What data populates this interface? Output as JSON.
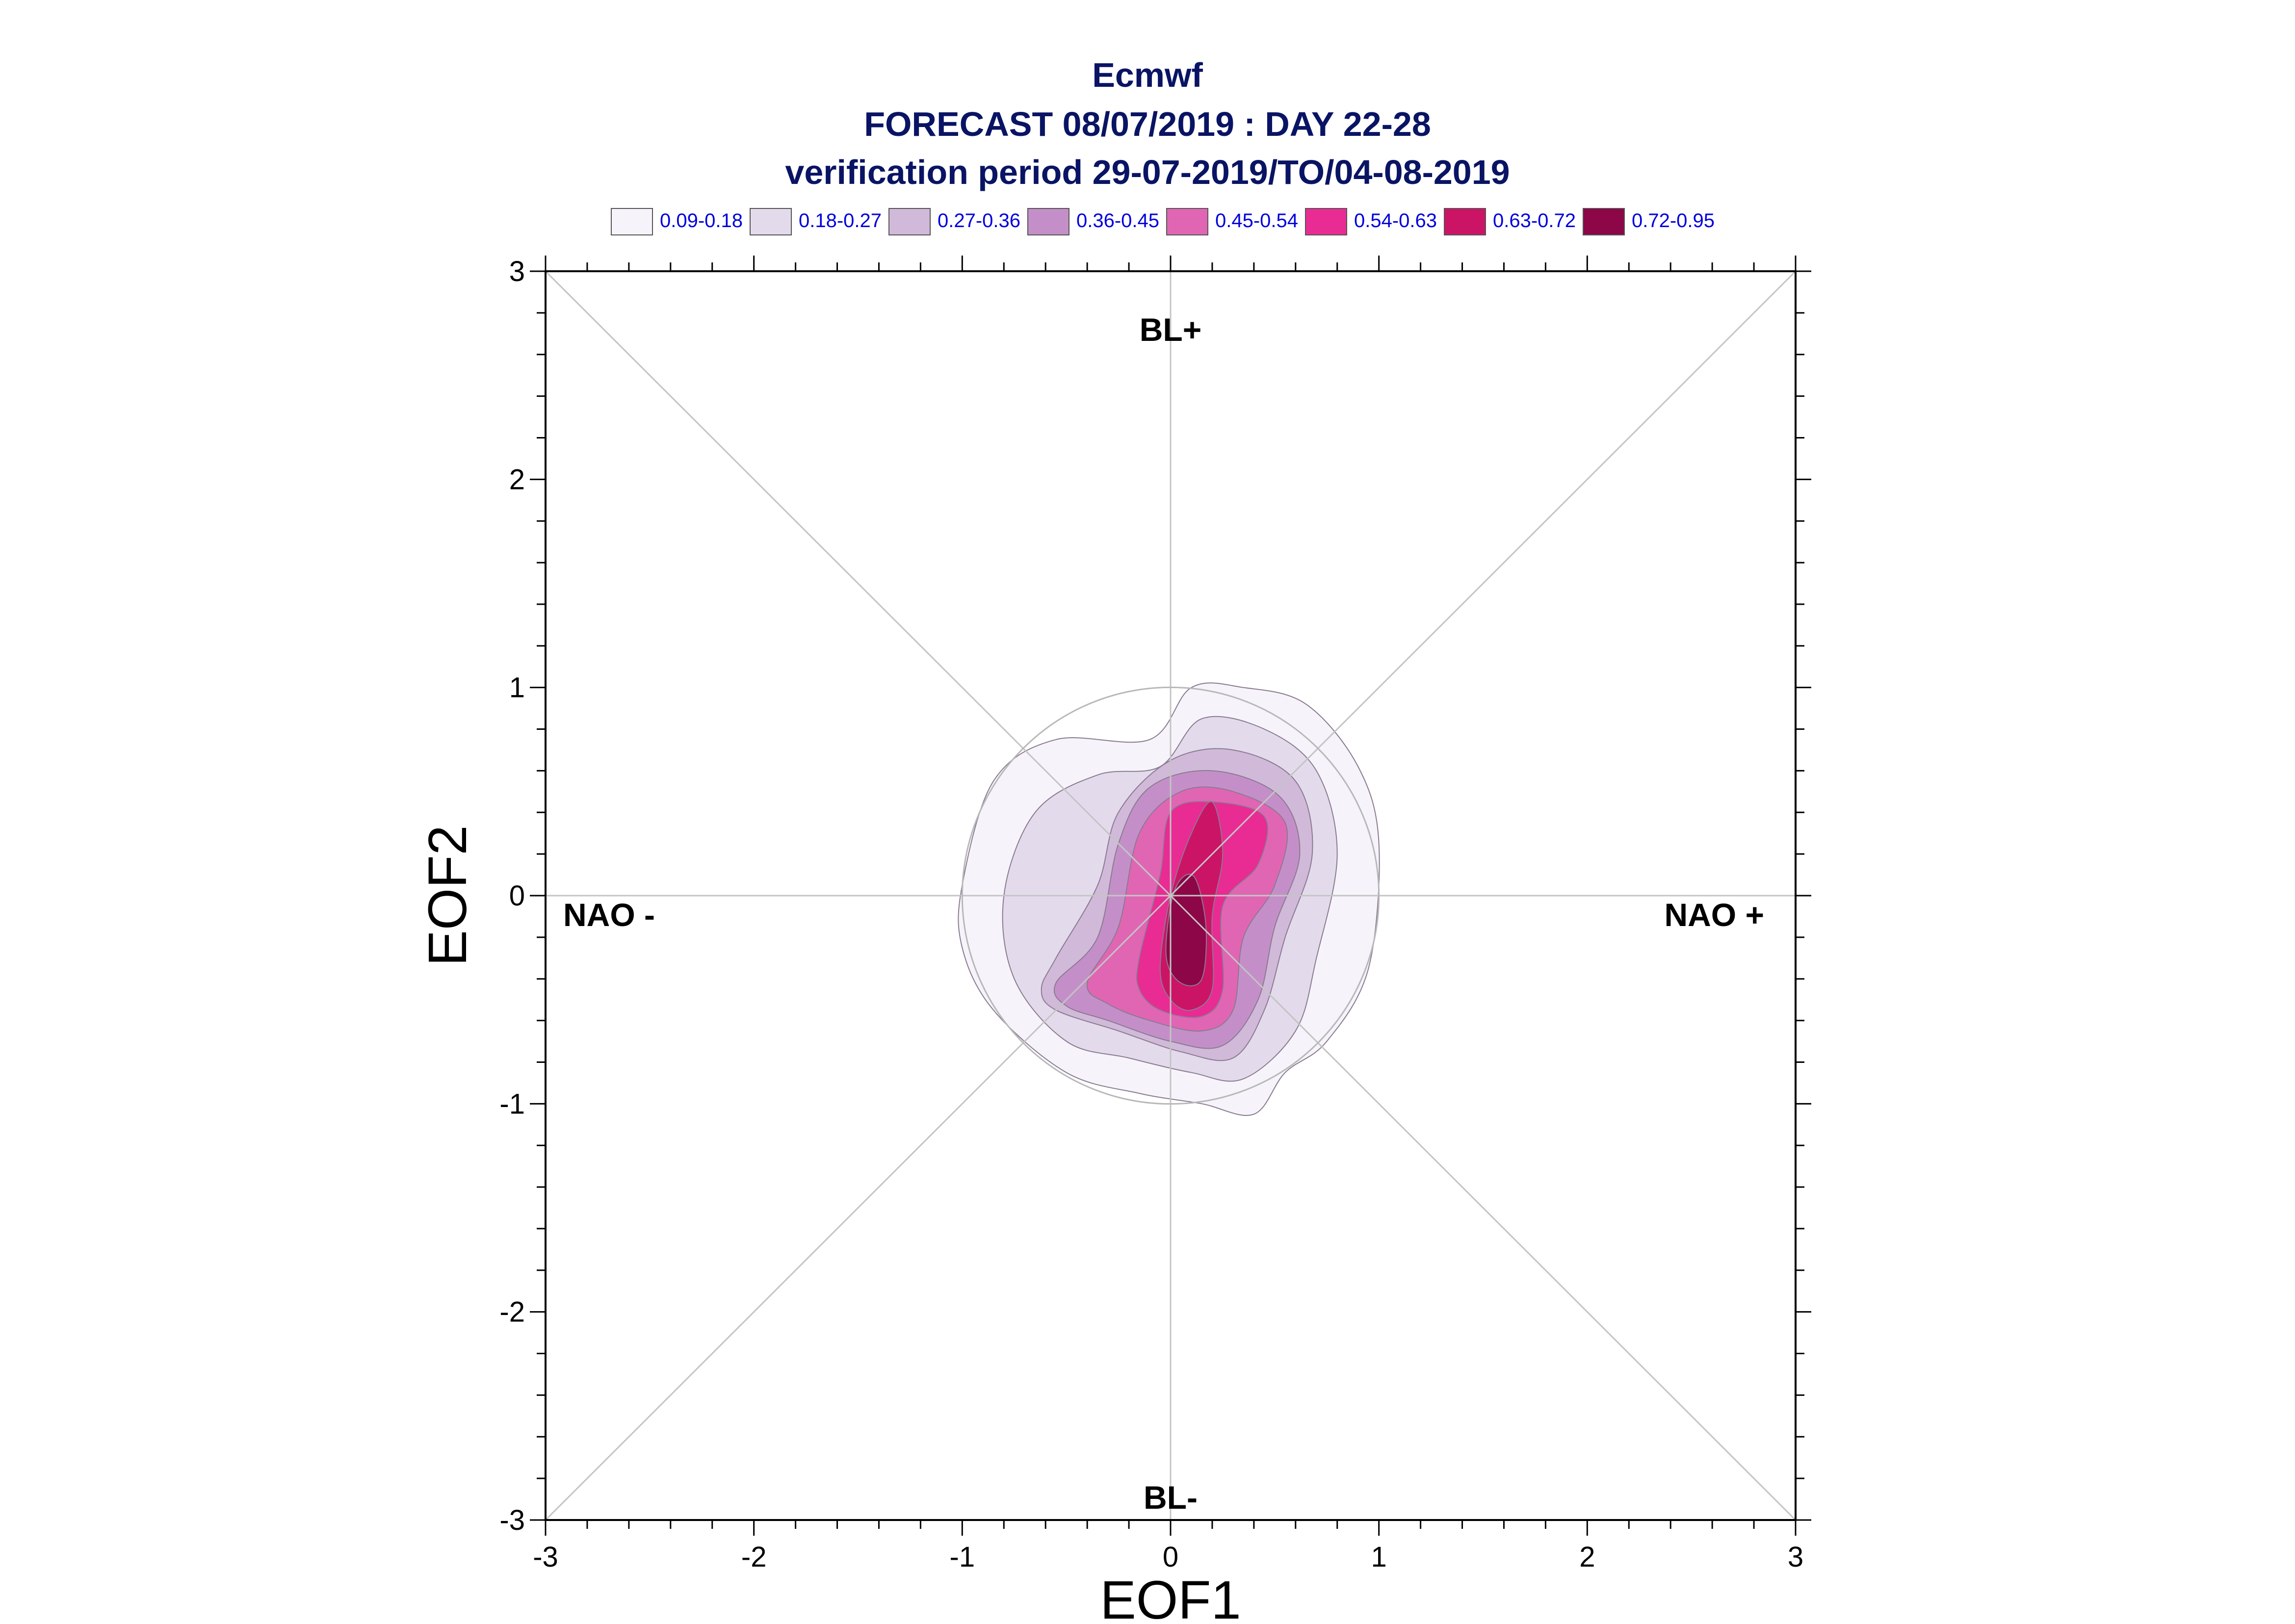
{
  "chart_data": {
    "type": "contour",
    "title": "Ecmwf",
    "subtitle": "FORECAST 08/07/2019 : DAY 22-28",
    "period": "verification period 29-07-2019/TO/04-08-2019",
    "xlabel": "EOF1",
    "ylabel": "EOF2",
    "xlim": [
      -3,
      3
    ],
    "ylim": [
      -3,
      3
    ],
    "x_ticks": [
      "-3",
      "-2",
      "-1",
      "0",
      "1",
      "2",
      "3"
    ],
    "y_ticks": [
      "-3",
      "-2",
      "-1",
      "0",
      "1",
      "2",
      "3"
    ],
    "regime_labels": {
      "top": "BL+",
      "bottom": "BL-",
      "left": "NAO -",
      "right": "NAO +"
    },
    "reference_circle_radius": 1.0,
    "legend": [
      {
        "label": "0.09-0.18",
        "color": "#f6f4fa"
      },
      {
        "label": "0.18-0.27",
        "color": "#e3dbec"
      },
      {
        "label": "0.27-0.36",
        "color": "#d1b9d9"
      },
      {
        "label": "0.36-0.45",
        "color": "#c48fc8"
      },
      {
        "label": "0.45-0.54",
        "color": "#e066b4"
      },
      {
        "label": "0.54-0.63",
        "color": "#e82c94"
      },
      {
        "label": "0.63-0.72",
        "color": "#cc1466"
      },
      {
        "label": "0.72-0.95",
        "color": "#8c0648"
      }
    ],
    "contours": [
      {
        "level": "0.09-0.18",
        "points": [
          [
            -1.0,
            0.05
          ],
          [
            -0.85,
            0.55
          ],
          [
            -0.55,
            0.75
          ],
          [
            -0.1,
            0.75
          ],
          [
            0.1,
            1.0
          ],
          [
            0.35,
            1.0
          ],
          [
            0.65,
            0.92
          ],
          [
            0.9,
            0.62
          ],
          [
            1.0,
            0.25
          ],
          [
            0.95,
            -0.35
          ],
          [
            0.75,
            -0.7
          ],
          [
            0.55,
            -0.85
          ],
          [
            0.4,
            -1.05
          ],
          [
            0.15,
            -1.0
          ],
          [
            -0.15,
            -0.95
          ],
          [
            -0.5,
            -0.85
          ],
          [
            -0.85,
            -0.55
          ],
          [
            -1.0,
            -0.25
          ]
        ]
      },
      {
        "level": "0.18-0.27",
        "points": [
          [
            -0.8,
            0.0
          ],
          [
            -0.65,
            0.4
          ],
          [
            -0.35,
            0.58
          ],
          [
            -0.05,
            0.62
          ],
          [
            0.15,
            0.85
          ],
          [
            0.45,
            0.8
          ],
          [
            0.7,
            0.6
          ],
          [
            0.8,
            0.2
          ],
          [
            0.7,
            -0.3
          ],
          [
            0.6,
            -0.65
          ],
          [
            0.35,
            -0.88
          ],
          [
            0.1,
            -0.85
          ],
          [
            -0.2,
            -0.78
          ],
          [
            -0.5,
            -0.7
          ],
          [
            -0.75,
            -0.4
          ]
        ]
      },
      {
        "level": "0.27-0.36",
        "points": [
          [
            -0.55,
            -0.3
          ],
          [
            -0.35,
            0.05
          ],
          [
            -0.25,
            0.4
          ],
          [
            0.0,
            0.65
          ],
          [
            0.3,
            0.7
          ],
          [
            0.6,
            0.55
          ],
          [
            0.68,
            0.2
          ],
          [
            0.55,
            -0.2
          ],
          [
            0.45,
            -0.55
          ],
          [
            0.3,
            -0.78
          ],
          [
            0.05,
            -0.75
          ],
          [
            -0.25,
            -0.65
          ],
          [
            -0.55,
            -0.55
          ],
          [
            -0.62,
            -0.45
          ]
        ]
      },
      {
        "level": "0.36-0.45",
        "points": [
          [
            -0.55,
            -0.42
          ],
          [
            -0.35,
            -0.2
          ],
          [
            -0.25,
            0.25
          ],
          [
            -0.1,
            0.52
          ],
          [
            0.2,
            0.6
          ],
          [
            0.52,
            0.48
          ],
          [
            0.62,
            0.2
          ],
          [
            0.5,
            -0.15
          ],
          [
            0.42,
            -0.5
          ],
          [
            0.25,
            -0.72
          ],
          [
            0.0,
            -0.7
          ],
          [
            -0.3,
            -0.6
          ],
          [
            -0.5,
            -0.53
          ]
        ]
      },
      {
        "level": "0.45-0.54",
        "points": [
          [
            -0.4,
            -0.42
          ],
          [
            -0.25,
            -0.15
          ],
          [
            -0.15,
            0.3
          ],
          [
            0.05,
            0.5
          ],
          [
            0.3,
            0.5
          ],
          [
            0.55,
            0.35
          ],
          [
            0.5,
            0.05
          ],
          [
            0.35,
            -0.2
          ],
          [
            0.3,
            -0.55
          ],
          [
            0.15,
            -0.65
          ],
          [
            -0.1,
            -0.6
          ],
          [
            -0.3,
            -0.52
          ]
        ]
      },
      {
        "level": "0.54-0.63",
        "points": [
          [
            -0.15,
            -0.3
          ],
          [
            -0.05,
            0.1
          ],
          [
            0.0,
            0.4
          ],
          [
            0.2,
            0.45
          ],
          [
            0.45,
            0.38
          ],
          [
            0.42,
            0.15
          ],
          [
            0.25,
            -0.05
          ],
          [
            0.25,
            -0.45
          ],
          [
            0.15,
            -0.58
          ],
          [
            -0.05,
            -0.55
          ],
          [
            -0.15,
            -0.45
          ]
        ]
      },
      {
        "level": "0.63-0.72",
        "points": [
          [
            -0.05,
            -0.35
          ],
          [
            0.0,
            0.0
          ],
          [
            0.1,
            0.3
          ],
          [
            0.2,
            0.45
          ],
          [
            0.25,
            0.2
          ],
          [
            0.2,
            -0.1
          ],
          [
            0.2,
            -0.45
          ],
          [
            0.1,
            -0.55
          ],
          [
            0.0,
            -0.5
          ]
        ]
      },
      {
        "level": "0.72-0.95",
        "points": [
          [
            -0.02,
            -0.3
          ],
          [
            0.0,
            -0.05
          ],
          [
            0.05,
            0.08
          ],
          [
            0.12,
            0.08
          ],
          [
            0.17,
            -0.15
          ],
          [
            0.15,
            -0.4
          ],
          [
            0.05,
            -0.42
          ]
        ]
      }
    ]
  }
}
